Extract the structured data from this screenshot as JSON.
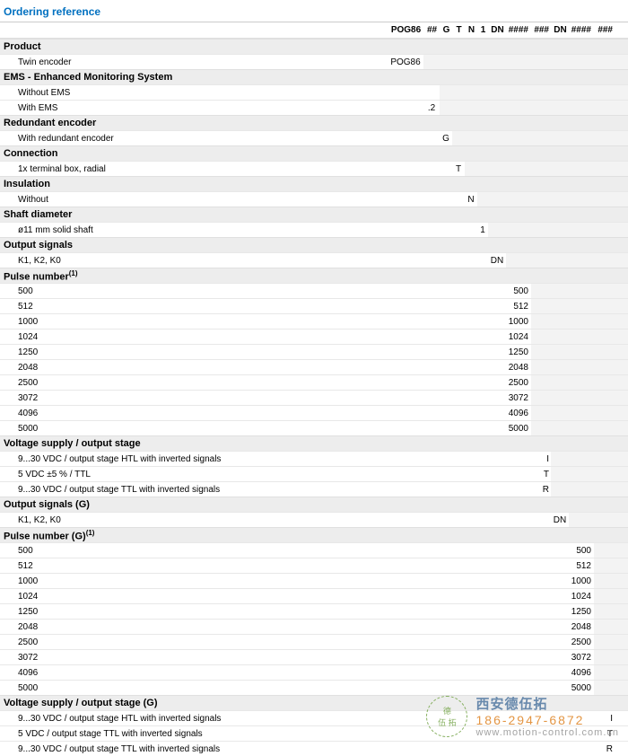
{
  "title": "Ordering reference",
  "header": [
    "POG86",
    "##",
    "G",
    "T",
    "N",
    "1",
    "DN",
    "####",
    "###",
    "DN",
    "####",
    "###"
  ],
  "sections": [
    {
      "name": "Product",
      "shadeFrom": 1,
      "rows": [
        {
          "label": "Twin encoder",
          "col": 0,
          "val": "POG86"
        }
      ]
    },
    {
      "name": "EMS - Enhanced Monitoring System",
      "shadeFrom": 2,
      "rows": [
        {
          "label": "Without EMS",
          "col": 1,
          "val": ""
        },
        {
          "label": "With EMS",
          "col": 1,
          "val": ".2"
        }
      ]
    },
    {
      "name": "Redundant encoder",
      "shadeFrom": 3,
      "rows": [
        {
          "label": "With redundant encoder",
          "col": 2,
          "val": "G"
        }
      ]
    },
    {
      "name": "Connection",
      "shadeFrom": 4,
      "rows": [
        {
          "label": "1x terminal box, radial",
          "col": 3,
          "val": "T"
        }
      ]
    },
    {
      "name": "Insulation",
      "shadeFrom": 5,
      "rows": [
        {
          "label": "Without",
          "col": 4,
          "val": "N"
        }
      ]
    },
    {
      "name": "Shaft diameter",
      "shadeFrom": 6,
      "rows": [
        {
          "label": "ø11 mm solid shaft",
          "col": 5,
          "val": "1"
        }
      ]
    },
    {
      "name": "Output signals",
      "shadeFrom": 7,
      "rows": [
        {
          "label": "K1, K2, K0",
          "col": 6,
          "val": "DN"
        }
      ]
    },
    {
      "name": "Pulse number",
      "sup": "(1)",
      "shadeFrom": 8,
      "rows": [
        {
          "label": "500",
          "col": 7,
          "val": "500"
        },
        {
          "label": "512",
          "col": 7,
          "val": "512"
        },
        {
          "label": "1000",
          "col": 7,
          "val": "1000"
        },
        {
          "label": "1024",
          "col": 7,
          "val": "1024"
        },
        {
          "label": "1250",
          "col": 7,
          "val": "1250"
        },
        {
          "label": "2048",
          "col": 7,
          "val": "2048"
        },
        {
          "label": "2500",
          "col": 7,
          "val": "2500"
        },
        {
          "label": "3072",
          "col": 7,
          "val": "3072"
        },
        {
          "label": "4096",
          "col": 7,
          "val": "4096"
        },
        {
          "label": "5000",
          "col": 7,
          "val": "5000"
        }
      ]
    },
    {
      "name": "Voltage supply / output stage",
      "shadeFrom": 9,
      "rows": [
        {
          "label": "9...30 VDC / output stage HTL with inverted signals",
          "col": 8,
          "val": "I"
        },
        {
          "label": "5 VDC ±5 % / TTL",
          "col": 8,
          "val": "T"
        },
        {
          "label": "9...30 VDC / output stage TTL with inverted signals",
          "col": 8,
          "val": "R"
        }
      ]
    },
    {
      "name": "Output signals (G)",
      "shadeFrom": 10,
      "rows": [
        {
          "label": "K1, K2, K0",
          "col": 9,
          "val": "DN"
        }
      ]
    },
    {
      "name": "Pulse number (G)",
      "sup": "(1)",
      "shadeFrom": 11,
      "rows": [
        {
          "label": "500",
          "col": 10,
          "val": "500"
        },
        {
          "label": "512",
          "col": 10,
          "val": "512"
        },
        {
          "label": "1000",
          "col": 10,
          "val": "1000"
        },
        {
          "label": "1024",
          "col": 10,
          "val": "1024"
        },
        {
          "label": "1250",
          "col": 10,
          "val": "1250"
        },
        {
          "label": "2048",
          "col": 10,
          "val": "2048"
        },
        {
          "label": "2500",
          "col": 10,
          "val": "2500"
        },
        {
          "label": "3072",
          "col": 10,
          "val": "3072"
        },
        {
          "label": "4096",
          "col": 10,
          "val": "4096"
        },
        {
          "label": "5000",
          "col": 10,
          "val": "5000"
        }
      ]
    },
    {
      "name": "Voltage supply / output stage (G)",
      "shadeFrom": 12,
      "rows": [
        {
          "label": "9...30 VDC / output stage HTL with inverted signals",
          "col": 11,
          "val": "I"
        },
        {
          "label": "5 VDC / output stage TTL with inverted signals",
          "col": 11,
          "val": "T"
        },
        {
          "label": "9...30 VDC / output stage TTL with inverted signals",
          "col": 11,
          "val": "R"
        }
      ]
    }
  ],
  "colLefts": [
    432,
    472,
    490,
    504,
    518,
    532,
    544,
    564,
    592,
    614,
    634,
    662,
    686
  ],
  "watermark": {
    "circleTop": "德",
    "circleBottom": "伍 拓",
    "line1": "西安德伍拓",
    "line2": "186-2947-6872",
    "line3": "www.motion-control.com.cn"
  }
}
